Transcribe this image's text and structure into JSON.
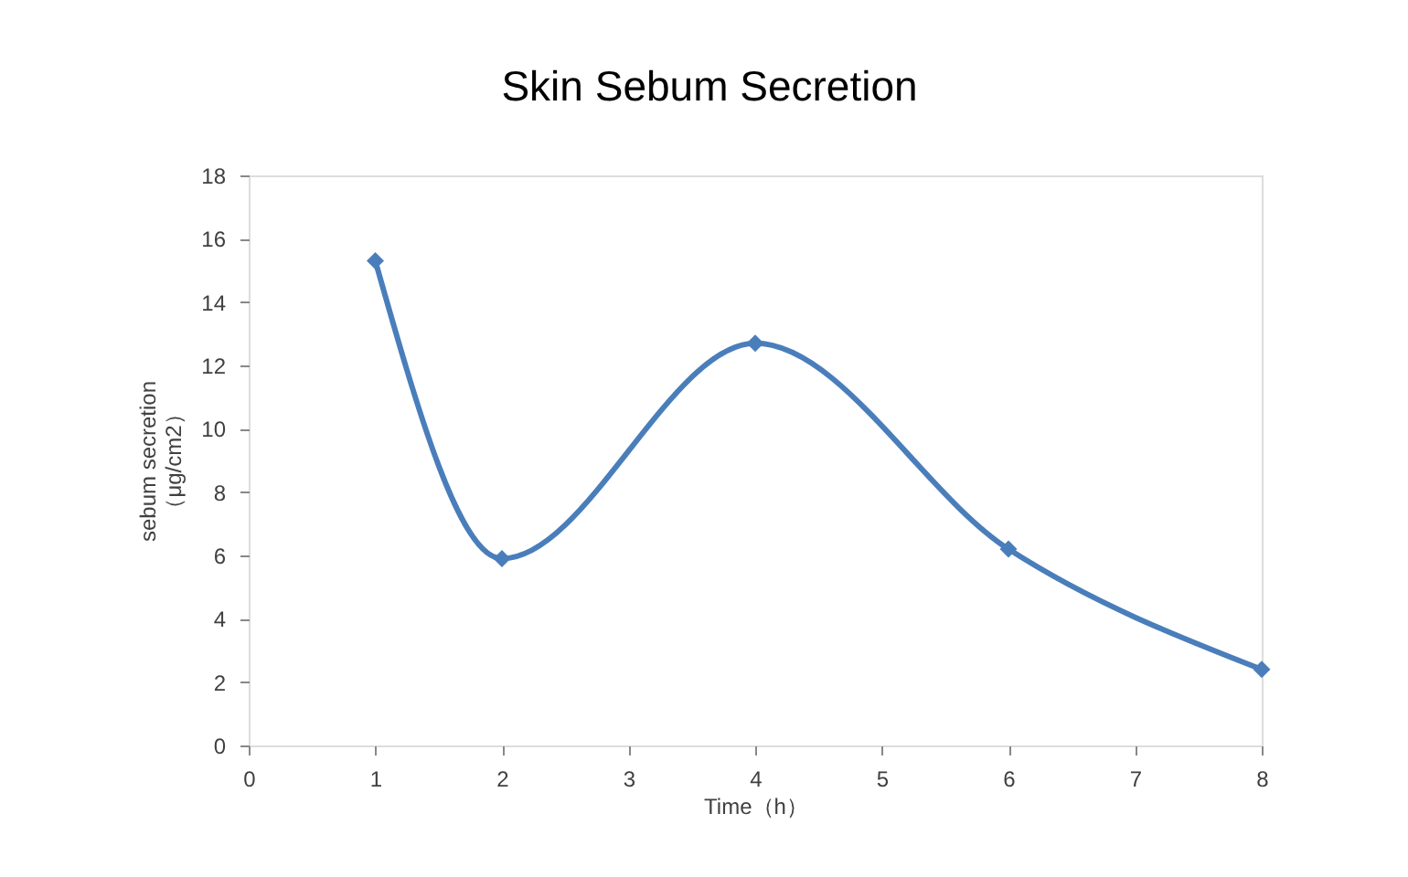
{
  "chart_data": {
    "type": "line",
    "title": "Skin Sebum Secretion",
    "xlabel": "Time（h）",
    "ylabel": "sebum secretion\n（μg/cm2）",
    "x": [
      1,
      2,
      4,
      6,
      8
    ],
    "series": [
      {
        "color": "#4a7ebb",
        "values": [
          15.3,
          5.9,
          12.7,
          6.2,
          2.4
        ]
      }
    ],
    "xlim": [
      0,
      8
    ],
    "ylim": [
      0,
      18
    ],
    "xticks": [
      0,
      1,
      2,
      3,
      4,
      5,
      6,
      7,
      8
    ],
    "yticks": [
      0,
      2,
      4,
      6,
      8,
      10,
      12,
      14,
      16,
      18
    ],
    "marker": "diamond",
    "line_style": "solid"
  }
}
